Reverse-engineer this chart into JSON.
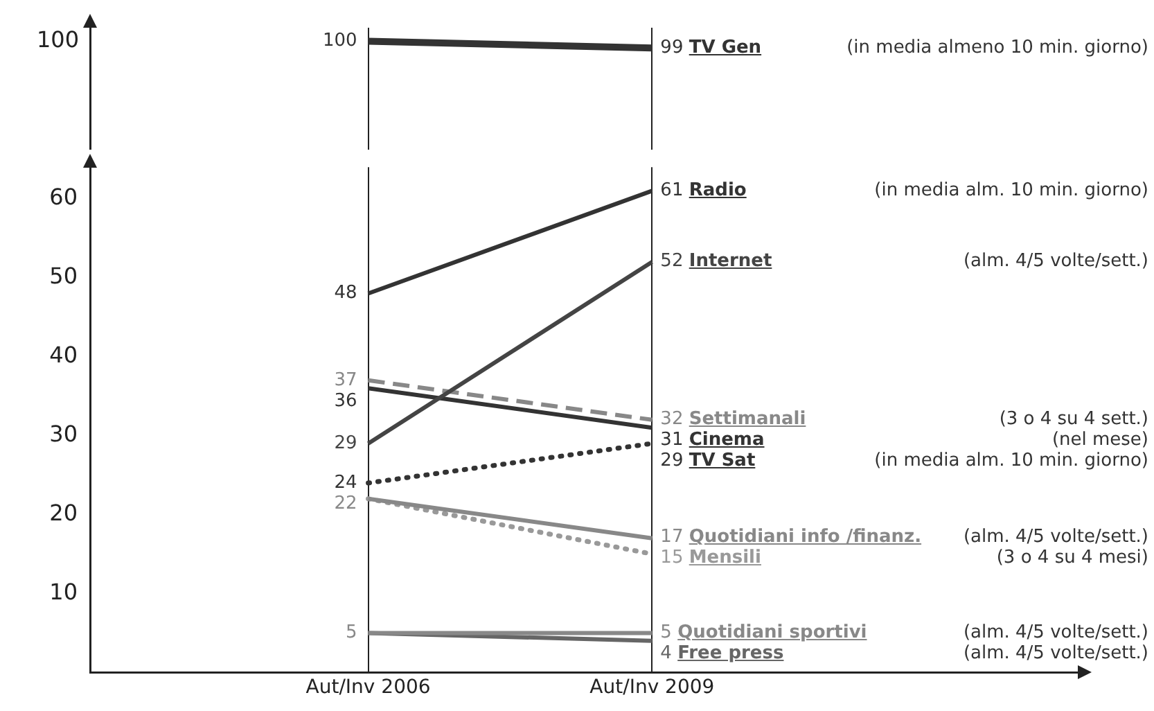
{
  "chart_data": [
    {
      "type": "line",
      "ylabel": "100",
      "grid": "x",
      "marker": "none",
      "series": [
        {
          "name": "TV Gen",
          "color": "#333333",
          "values": [
            100,
            99
          ],
          "value_labels": [
            "100",
            "99"
          ]
        }
      ],
      "annotations": [
        "(in media almeno 10 min. giorno)"
      ]
    },
    {
      "type": "line",
      "categories": [
        "Aut/Inv 2006",
        "Aut/Inv 2009"
      ],
      "ylim": [
        0,
        64
      ],
      "yticks": [
        10,
        20,
        30,
        40,
        50,
        60
      ],
      "grid": "x",
      "marker": "none",
      "series": [
        {
          "name": "Radio",
          "color": "#333333",
          "values": [
            48,
            61
          ],
          "value_labels": [
            "48",
            "61"
          ]
        },
        {
          "name": "Internet",
          "color": "#444444",
          "values": [
            29,
            52
          ],
          "value_labels": [
            "29",
            "52"
          ]
        },
        {
          "name": "Settimanali",
          "color": "#888888",
          "line_style": "dashed",
          "values": [
            37,
            32
          ],
          "value_labels": [
            "37",
            "32"
          ]
        },
        {
          "name": "Cinema",
          "color": "#333333",
          "values": [
            36,
            31
          ],
          "value_labels": [
            "36",
            "31"
          ]
        },
        {
          "name": "TV Sat",
          "color": "#333333",
          "line_style": "dotted",
          "values": [
            24,
            29
          ],
          "value_labels": [
            "24",
            "29"
          ]
        },
        {
          "name": "Quotidiani info /finanz.",
          "color": "#888888",
          "values": [
            22,
            17
          ],
          "value_labels": [
            "22",
            "17"
          ]
        },
        {
          "name": "Mensili",
          "color": "#999999",
          "line_style": "dotted",
          "values": [
            22,
            15
          ],
          "value_labels": [
            null,
            "15"
          ]
        },
        {
          "name": "Quotidiani sportivi",
          "color": "#888888",
          "values": [
            5,
            5
          ],
          "value_labels": [
            "5",
            "5"
          ]
        },
        {
          "name": "Free press",
          "color": "#666666",
          "values": [
            5,
            4
          ],
          "value_labels": [
            null,
            "4"
          ]
        }
      ],
      "annotations": [
        "(in media alm. 10 min. giorno)",
        "(alm. 4/5 volte/sett.)",
        "(3 o 4 su 4 sett.)",
        "(nel mese)",
        "(in media alm. 10 min. giorno)",
        "(alm. 4/5 volte/sett.)",
        "(3 o 4 su 4 mesi)",
        "(alm. 4/5 volte/sett.)",
        "(alm. 4/5 volte/sett.)"
      ]
    }
  ]
}
